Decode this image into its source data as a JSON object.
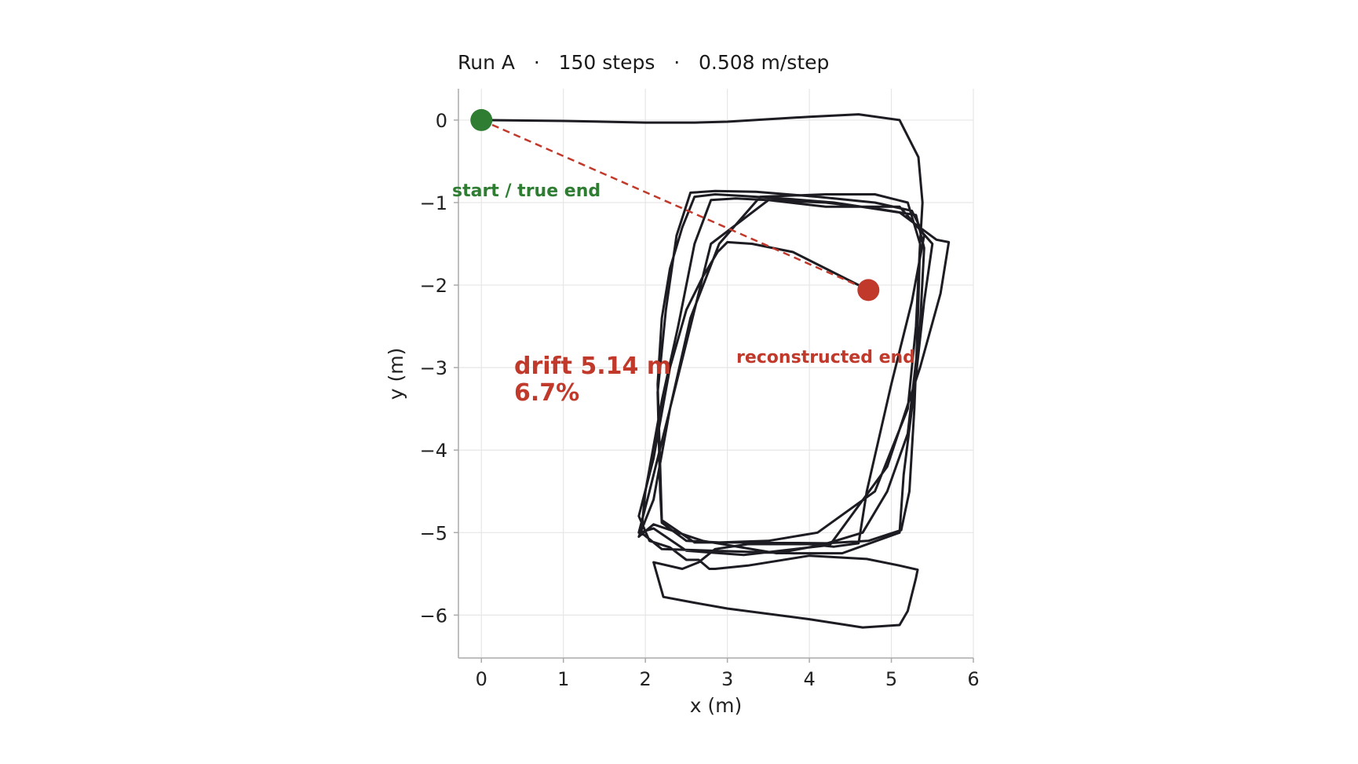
{
  "chart_data": {
    "type": "line",
    "title": "Run A   ·   150 steps   ·   0.508 m/step",
    "xlabel": "x (m)",
    "ylabel": "y (m)",
    "xlim": [
      -0.28,
      6.0
    ],
    "ylim": [
      -6.52,
      0.38
    ],
    "xticks": [
      0,
      1,
      2,
      3,
      4,
      5,
      6
    ],
    "yticks": [
      0,
      -1,
      -2,
      -3,
      -4,
      -5,
      -6
    ],
    "grid": true,
    "colors": {
      "trajectory": "#1c1c22",
      "start": "#2e7d32",
      "end": "#c0392b",
      "drift_line": "#c0392b",
      "grid": "#e6e6e6",
      "axis": "#aaaaaa"
    },
    "trajectory": {
      "x": [
        0.0,
        1.0,
        2.0,
        2.6,
        3.0,
        4.0,
        4.6,
        5.1,
        5.33,
        5.38,
        5.35,
        5.32,
        5.28,
        5.22,
        5.12,
        4.72,
        4.2,
        3.3,
        2.6,
        2.2,
        2.18,
        2.15,
        2.2,
        2.3,
        2.45,
        2.6,
        2.85,
        3.2,
        3.8,
        4.3,
        5.1,
        5.55,
        5.7,
        5.6,
        5.35,
        4.95,
        4.25,
        3.2,
        2.5,
        2.1,
        1.92,
        2.05,
        2.3,
        2.55,
        2.8,
        3.5,
        4.2,
        5.1,
        5.5,
        5.4,
        5.3,
        5.15,
        5.1,
        4.4,
        3.8,
        2.2,
        1.95,
        2.0,
        2.2,
        2.4,
        2.6,
        2.8,
        3.1,
        3.7,
        4.2,
        4.8,
        5.3,
        5.4,
        5.35,
        5.2,
        4.95,
        4.65,
        4.15,
        3.6,
        2.7,
        2.1,
        1.92,
        2.1,
        2.3,
        2.55,
        2.9,
        3.4,
        4.2,
        4.8,
        5.2,
        5.35,
        5.3,
        5.2,
        4.8,
        4.1,
        3.5,
        2.9,
        2.5,
        2.2,
        2.18,
        2.15,
        2.25,
        2.38,
        2.55,
        2.85,
        3.35,
        4.1,
        4.8,
        5.25,
        5.4,
        5.25,
        5.0,
        4.7,
        4.6,
        4.3,
        4.0,
        3.25,
        2.85,
        2.65,
        2.45,
        2.1,
        2.22,
        2.6,
        3.0,
        4.0,
        4.65,
        5.1,
        5.2,
        5.3,
        5.32,
        5.1,
        4.7,
        4.0,
        3.25,
        2.85,
        2.78,
        2.65,
        2.5,
        2.3,
        2.05,
        1.92,
        2.1,
        2.3,
        2.5,
        2.7,
        2.88,
        3.0,
        3.3,
        3.8,
        4.72
      ],
      "y": [
        0.0,
        -0.01,
        -0.03,
        -0.03,
        -0.02,
        0.04,
        0.07,
        0.0,
        -0.45,
        -1.0,
        -1.5,
        -2.5,
        -3.5,
        -4.5,
        -4.97,
        -5.1,
        -5.13,
        -5.12,
        -5.12,
        -4.85,
        -4.2,
        -3.2,
        -2.4,
        -1.8,
        -1.3,
        -0.93,
        -0.9,
        -0.92,
        -0.96,
        -1.0,
        -1.12,
        -1.45,
        -1.48,
        -2.1,
        -3.0,
        -4.2,
        -5.15,
        -5.27,
        -5.22,
        -4.95,
        -5.0,
        -4.5,
        -3.5,
        -2.5,
        -1.5,
        -0.97,
        -1.05,
        -1.05,
        -1.5,
        -2.2,
        -3.1,
        -4.3,
        -5.0,
        -5.25,
        -5.25,
        -5.2,
        -5.0,
        -4.5,
        -3.4,
        -2.5,
        -1.5,
        -0.97,
        -0.95,
        -0.98,
        -1.0,
        -1.07,
        -1.15,
        -1.55,
        -2.5,
        -3.8,
        -4.5,
        -5.0,
        -5.15,
        -5.25,
        -5.1,
        -4.9,
        -5.05,
        -4.6,
        -3.5,
        -2.4,
        -1.5,
        -0.93,
        -0.9,
        -0.9,
        -1.0,
        -1.5,
        -2.5,
        -3.5,
        -4.5,
        -5.0,
        -5.1,
        -5.12,
        -5.1,
        -4.88,
        -4.5,
        -3.3,
        -2.3,
        -1.4,
        -0.88,
        -0.86,
        -0.87,
        -0.93,
        -1.0,
        -1.1,
        -1.4,
        -2.2,
        -3.2,
        -4.5,
        -5.13,
        -5.17,
        -5.14,
        -5.14,
        -5.2,
        -5.36,
        -5.44,
        -5.36,
        -5.78,
        -5.85,
        -5.92,
        -6.05,
        -6.15,
        -6.12,
        -5.95,
        -5.55,
        -5.45,
        -5.4,
        -5.32,
        -5.28,
        -5.4,
        -5.44,
        -5.44,
        -5.33,
        -5.33,
        -5.18,
        -5.1,
        -4.8,
        -4.1,
        -3.0,
        -2.3,
        -1.9,
        -1.6,
        -1.48,
        -1.5,
        -1.6,
        -2.06
      ]
    },
    "start_point": {
      "x": 0.0,
      "y": 0.0
    },
    "end_point": {
      "x": 4.72,
      "y": -2.06
    },
    "annotations": {
      "start_label": "start / true end",
      "end_label": "reconstructed end",
      "drift_line1": "drift 5.14 m",
      "drift_line2": "6.7%"
    }
  }
}
